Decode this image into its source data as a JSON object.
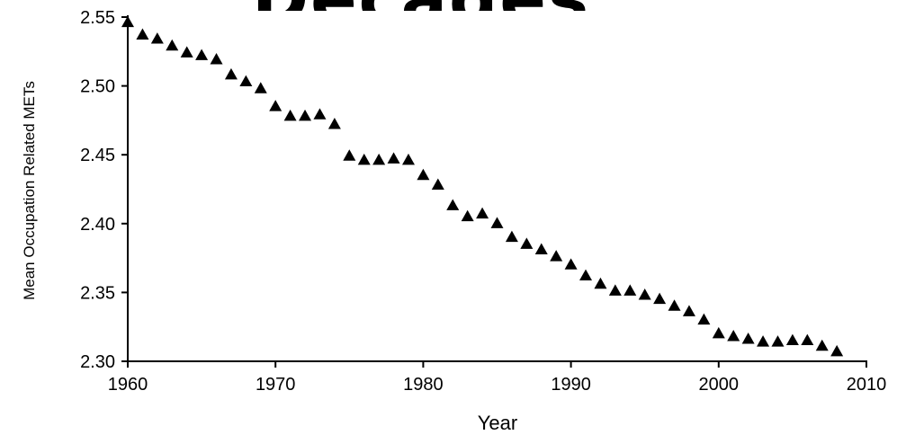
{
  "header": {
    "title": "Decades"
  },
  "chart_data": {
    "type": "scatter",
    "title": "Decades",
    "xlabel": "Year",
    "ylabel": "Mean Occupation Related METs",
    "xlim": [
      1960,
      2010
    ],
    "ylim": [
      2.3,
      2.55
    ],
    "x_ticks": [
      1960,
      1970,
      1980,
      1990,
      2000,
      2010
    ],
    "y_ticks": [
      "2.30",
      "2.35",
      "2.40",
      "2.45",
      "2.50",
      "2.55"
    ],
    "grid": false,
    "marker": "triangle",
    "series": [
      {
        "color": "#000000",
        "x": [
          1960,
          1961,
          1962,
          1963,
          1964,
          1965,
          1966,
          1967,
          1968,
          1969,
          1970,
          1971,
          1972,
          1973,
          1974,
          1975,
          1976,
          1977,
          1978,
          1979,
          1980,
          1981,
          1982,
          1983,
          1984,
          1985,
          1986,
          1987,
          1988,
          1989,
          1990,
          1991,
          1992,
          1993,
          1994,
          1995,
          1996,
          1997,
          1998,
          1999,
          2000,
          2001,
          2002,
          2003,
          2004,
          2005,
          2006,
          2007,
          2008
        ],
        "y": [
          2.546,
          2.537,
          2.534,
          2.529,
          2.524,
          2.522,
          2.519,
          2.508,
          2.503,
          2.498,
          2.485,
          2.478,
          2.478,
          2.479,
          2.472,
          2.449,
          2.446,
          2.446,
          2.447,
          2.446,
          2.435,
          2.428,
          2.413,
          2.405,
          2.407,
          2.4,
          2.39,
          2.385,
          2.381,
          2.376,
          2.37,
          2.362,
          2.356,
          2.351,
          2.351,
          2.348,
          2.345,
          2.34,
          2.336,
          2.33,
          2.32,
          2.318,
          2.316,
          2.314,
          2.314,
          2.315,
          2.315,
          2.311,
          2.307
        ]
      }
    ]
  }
}
